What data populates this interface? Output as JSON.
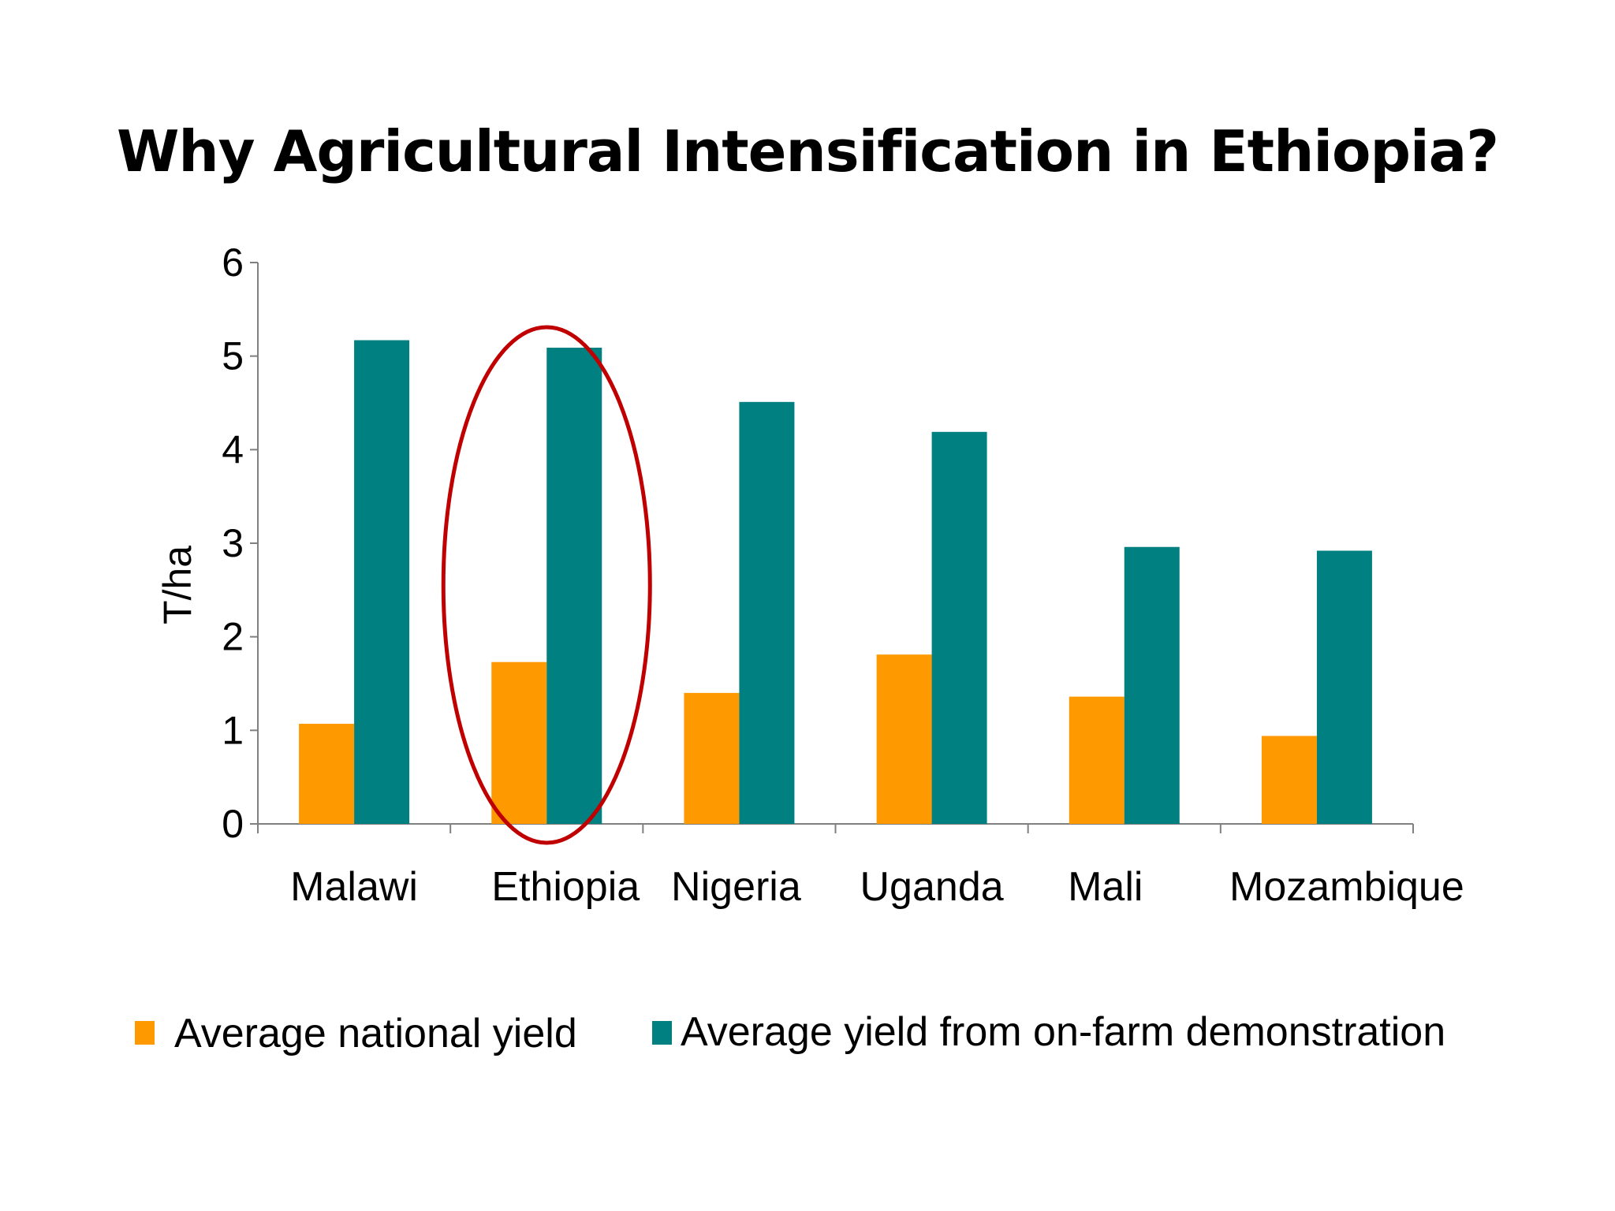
{
  "slide": {
    "title": "Why Agricultural Intensification in Ethiopia?"
  },
  "colors": {
    "national": "#FF9900",
    "demonstration": "#008080",
    "highlight": "#C00000",
    "axis": "#808080"
  },
  "chart_data": {
    "type": "bar",
    "title": "",
    "xlabel": "",
    "ylabel": "T/ha",
    "ylim": [
      0,
      6
    ],
    "yticks": [
      0,
      1,
      2,
      3,
      4,
      5,
      6
    ],
    "grid": false,
    "legend_position": "bottom",
    "categories": [
      "Malawi",
      "Ethiopia",
      "Nigeria",
      "Uganda",
      "Mali",
      "Mozambique"
    ],
    "series": [
      {
        "name": "Average national yield",
        "color": "#FF9900",
        "values": [
          1.07,
          1.73,
          1.4,
          1.81,
          1.36,
          0.94
        ]
      },
      {
        "name": "Average yield from on-farm demonstration",
        "color": "#008080",
        "values": [
          5.17,
          5.09,
          4.51,
          4.19,
          2.96,
          2.92
        ]
      }
    ],
    "highlight": {
      "category": "Ethiopia",
      "shape": "ellipse",
      "color": "#C00000"
    }
  }
}
